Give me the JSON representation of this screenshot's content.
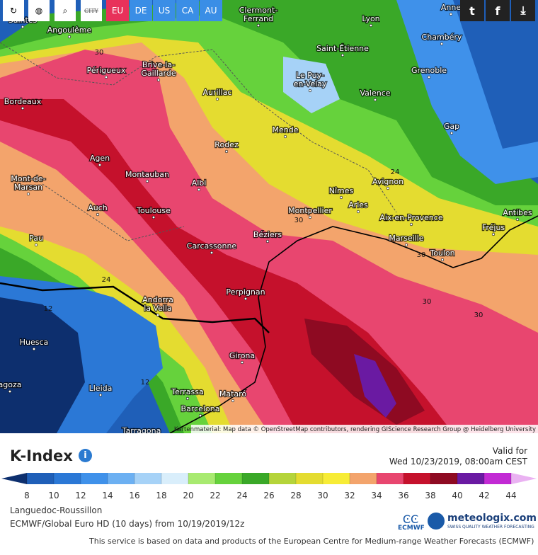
{
  "toolbar": {
    "city_icon": "CITY",
    "regions": [
      "EU",
      "DE",
      "US",
      "CA",
      "AU"
    ]
  },
  "map": {
    "cities": [
      [
        "Saintes"
      ],
      [
        "Angoulême"
      ],
      [
        "Clermont-",
        "Ferrand"
      ],
      [
        "Lyon"
      ],
      [
        "Anne"
      ],
      [
        "Chambéry"
      ],
      [
        "Saint-Étienne"
      ],
      [
        "Périgueux"
      ],
      [
        "Brive-la-",
        "Gaillarde"
      ],
      [
        "Le Puy-",
        "en-Velay"
      ],
      [
        "Grenoble"
      ],
      [
        "Aurillac"
      ],
      [
        "Valence"
      ],
      [
        "Bordeaux"
      ],
      [
        "Mende"
      ],
      [
        "Gap"
      ],
      [
        "Rodez"
      ],
      [
        "Agen"
      ],
      [
        "Montauban"
      ],
      [
        "Mont-de-",
        "Marsan"
      ],
      [
        "Albi"
      ],
      [
        "Avignon"
      ],
      [
        "Nîmes"
      ],
      [
        "Auch"
      ],
      [
        "Toulouse"
      ],
      [
        "Montpellier"
      ],
      [
        "Arles"
      ],
      [
        "Aix-en-Provence"
      ],
      [
        "Antibes"
      ],
      [
        "Fréjus"
      ],
      [
        "Pau"
      ],
      [
        "Béziers"
      ],
      [
        "Carcassonne"
      ],
      [
        "Marseille"
      ],
      [
        "Toulon"
      ],
      [
        "Perpignan"
      ],
      [
        "Andorra",
        "la Vella"
      ],
      [
        "Huesca"
      ],
      [
        "Girona"
      ],
      [
        "agoza"
      ],
      [
        "Lleida"
      ],
      [
        "Terrassa"
      ],
      [
        "Mataró"
      ],
      [
        "Barcelona"
      ],
      [
        "Tarragona"
      ]
    ],
    "contour_labels": [
      30,
      24,
      30,
      30,
      30,
      30,
      24,
      12,
      12
    ],
    "attribution": "Kartenmaterial: Map data © OpenStreetMap contributors, rendering GIScience Research Group @ Heidelberg University"
  },
  "legend": {
    "title": "K-Index",
    "valid_label": "Valid for",
    "valid_time": "Wed 10/23/2019, 08:00am CEST",
    "ticks": [
      8,
      10,
      12,
      14,
      16,
      18,
      20,
      22,
      24,
      26,
      28,
      30,
      32,
      34,
      36,
      38,
      40,
      42,
      44
    ],
    "colors": [
      "#0d2f6e",
      "#1f5fb8",
      "#2b78d6",
      "#3f91ea",
      "#6cb0f2",
      "#a6d2f7",
      "#d9eefb",
      "#a8ea70",
      "#66d23c",
      "#3aa828",
      "#b5d43a",
      "#e4dc30",
      "#f7ec36",
      "#f3a46c",
      "#e8466f",
      "#c5112c",
      "#8e0a22",
      "#6a1aa2",
      "#c22ad4",
      "#eab2f2"
    ]
  },
  "footer": {
    "region": "Languedoc-Roussillon",
    "model": "ECMWF/Global Euro HD (10 days) from 10/19/2019/12z",
    "ecmwf_logo": "ECMWF",
    "brand": "meteologix.com",
    "tagline": "SWISS QUALITY WEATHER FORECASTING",
    "notice": "This service is based on data and products of the European Centre for Medium-range Weather Forecasts (ECMWF)"
  }
}
